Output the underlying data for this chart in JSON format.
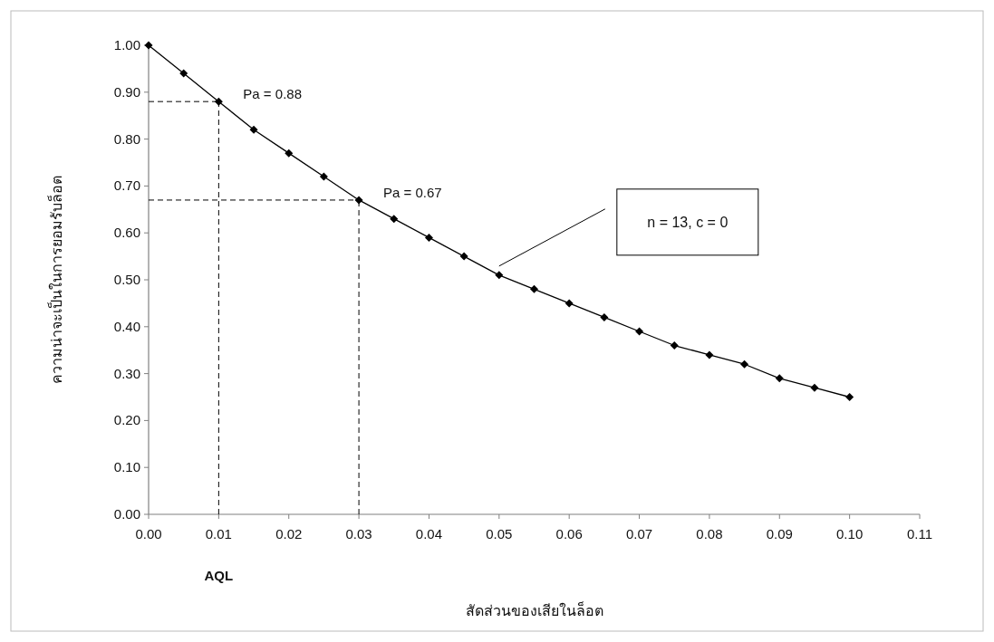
{
  "chart_data": {
    "type": "line",
    "xlabel": "สัดส่วนของเสียในล็อต",
    "ylabel": "ความน่าจะเป็นในการยอมรับล็อต",
    "x": [
      0,
      0.005,
      0.01,
      0.015,
      0.02,
      0.025,
      0.03,
      0.035,
      0.04,
      0.045,
      0.05,
      0.055,
      0.06,
      0.065,
      0.07,
      0.075,
      0.08,
      0.085,
      0.09,
      0.095,
      0.1
    ],
    "series": [
      {
        "color": "#000000",
        "values": [
          1.0,
          0.94,
          0.88,
          0.82,
          0.77,
          0.72,
          0.67,
          0.63,
          0.59,
          0.55,
          0.51,
          0.48,
          0.45,
          0.42,
          0.39,
          0.36,
          0.34,
          0.32,
          0.29,
          0.27,
          0.25
        ]
      }
    ],
    "xlim": [
      0,
      0.11
    ],
    "xticks": [
      {
        "value": 0,
        "label": "0.00"
      },
      {
        "value": 0.01,
        "label": "0.01"
      },
      {
        "value": 0.02,
        "label": "0.02"
      },
      {
        "value": 0.03,
        "label": "0.03"
      },
      {
        "value": 0.04,
        "label": "0.04"
      },
      {
        "value": 0.05,
        "label": "0.05"
      },
      {
        "value": 0.06,
        "label": "0.06"
      },
      {
        "value": 0.07,
        "label": "0.07"
      },
      {
        "value": 0.08,
        "label": "0.08"
      },
      {
        "value": 0.09,
        "label": "0.09"
      },
      {
        "value": 0.1,
        "label": "0.10"
      },
      {
        "value": 0.11,
        "label": "0.11"
      }
    ],
    "ylim": [
      0,
      1
    ],
    "yticks": [
      {
        "value": 0,
        "label": "0.00"
      },
      {
        "value": 0.1,
        "label": "0.10"
      },
      {
        "value": 0.2,
        "label": "0.20"
      },
      {
        "value": 0.3,
        "label": "0.30"
      },
      {
        "value": 0.4,
        "label": "0.40"
      },
      {
        "value": 0.5,
        "label": "0.50"
      },
      {
        "value": 0.6,
        "label": "0.60"
      },
      {
        "value": 0.7,
        "label": "0.70"
      },
      {
        "value": 0.8,
        "label": "0.80"
      },
      {
        "value": 0.9,
        "label": "0.90"
      },
      {
        "value": 1,
        "label": "1.00"
      }
    ],
    "annotations": [
      {
        "text": "Pa = 0.88",
        "x": 0.01,
        "y": 0.88
      },
      {
        "text": "Pa = 0.67",
        "x": 0.03,
        "y": 0.67
      },
      "AQL",
      "n = 13, c = 0"
    ],
    "ref_lines": [
      {
        "axis": "x",
        "value": 0.01,
        "line_style": "dashed"
      },
      {
        "axis": "y",
        "value": 0.88,
        "line_style": "dashed"
      },
      {
        "axis": "x",
        "value": 0.03,
        "line_style": "dashed"
      },
      {
        "axis": "y",
        "value": 0.67,
        "line_style": "dashed"
      }
    ],
    "marker": "diamond",
    "line_style": "solid"
  }
}
